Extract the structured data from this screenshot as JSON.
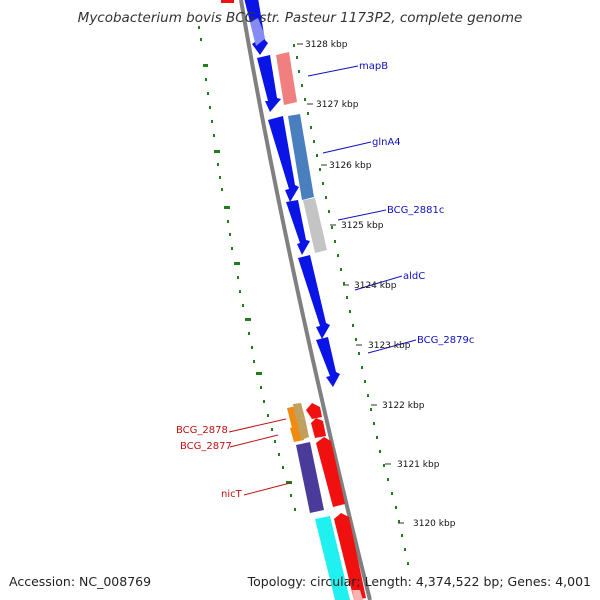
{
  "title": "Mycobacterium bovis BCG str. Pasteur 1173P2, complete genome",
  "accession": "Accession: NC_008769",
  "summary": "Topology: circular; Length: 4,374,522 bp; Genes: 4,001",
  "colors": {
    "backbone": "#808080",
    "gc_dots": "#1f7f1f",
    "forward_cds": "#0a14e6",
    "reverse_cds": "#f01010",
    "label_blue": "#1010c0",
    "label_red": "#c01010"
  },
  "ticks": [
    {
      "label": "3128 kbp"
    },
    {
      "label": "3127 kbp"
    },
    {
      "label": "3126 kbp"
    },
    {
      "label": "3125 kbp"
    },
    {
      "label": "3124 kbp"
    },
    {
      "label": "3123 kbp"
    },
    {
      "label": "3122 kbp"
    },
    {
      "label": "3121 kbp"
    },
    {
      "label": "3120 kbp"
    }
  ],
  "gene_labels": [
    {
      "name": "mapB",
      "color": "#1010c0"
    },
    {
      "name": "glnA4",
      "color": "#1010c0"
    },
    {
      "name": "BCG_2881c",
      "color": "#1010c0"
    },
    {
      "name": "aldC",
      "color": "#1010c0"
    },
    {
      "name": "BCG_2879c",
      "color": "#1010c0"
    },
    {
      "name": "BCG_2878",
      "color": "#c01010"
    },
    {
      "name": "BCG_2877",
      "color": "#c01010"
    },
    {
      "name": "nicT",
      "color": "#c01010"
    }
  ]
}
